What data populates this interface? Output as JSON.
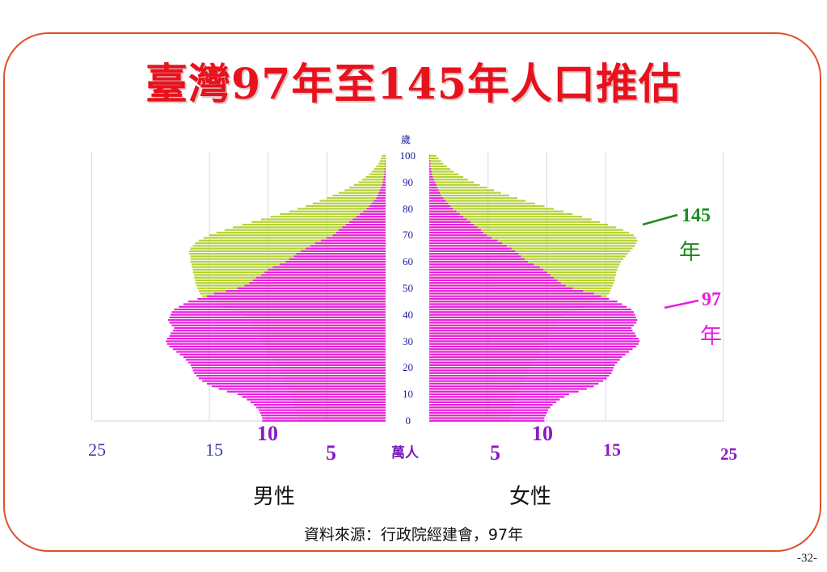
{
  "title": "臺灣97年至145年人口推估",
  "chart_data": {
    "type": "population-pyramid",
    "y_unit": "歲",
    "x_unit": "萬人",
    "y_ticks": [
      "100",
      "90",
      "80",
      "70",
      "60",
      "50",
      "40",
      "30",
      "20",
      "10",
      "0"
    ],
    "x_ticks_left": [
      "25",
      "15",
      "10",
      "5"
    ],
    "x_ticks_right": [
      "5",
      "10",
      "15",
      "25"
    ],
    "xlim": [
      0,
      25
    ],
    "ylim": [
      0,
      100
    ],
    "sides": {
      "left": "男性",
      "right": "女性"
    },
    "series": [
      {
        "name": "145年",
        "label_year": "145",
        "label_unit": "年",
        "color": "#b5d334",
        "male": [
          7.4,
          7.5,
          7.5,
          7.6,
          7.6,
          7.7,
          7.7,
          7.8,
          7.8,
          7.9,
          8.0,
          8.1,
          8.2,
          8.3,
          8.4,
          8.5,
          8.6,
          8.7,
          8.9,
          9.0,
          9.1,
          9.3,
          9.4,
          9.6,
          9.7,
          9.9,
          10.0,
          10.1,
          10.3,
          10.4,
          10.5,
          10.6,
          10.7,
          10.8,
          10.9,
          11.0,
          11.2,
          11.4,
          11.6,
          11.8,
          12.0,
          12.6,
          13.2,
          13.8,
          14.4,
          15.0,
          15.4,
          15.6,
          15.8,
          15.9,
          16.0,
          16.1,
          16.2,
          16.2,
          16.3,
          16.3,
          16.4,
          16.4,
          16.5,
          16.5,
          16.6,
          16.6,
          16.6,
          16.7,
          16.7,
          16.6,
          16.4,
          16.2,
          15.9,
          15.5,
          15.0,
          14.4,
          13.7,
          13.0,
          12.2,
          11.4,
          10.6,
          9.8,
          9.0,
          8.2,
          7.5,
          6.8,
          6.2,
          5.6,
          5.0,
          4.5,
          4.0,
          3.5,
          3.1,
          2.7,
          2.3,
          2.0,
          1.7,
          1.4,
          1.2,
          1.0,
          0.8,
          0.6,
          0.5,
          0.4,
          0.3
        ],
        "female": [
          6.8,
          6.9,
          6.9,
          7.0,
          7.0,
          7.1,
          7.1,
          7.2,
          7.2,
          7.3,
          7.4,
          7.5,
          7.6,
          7.7,
          7.8,
          7.9,
          8.0,
          8.1,
          8.3,
          8.4,
          8.5,
          8.7,
          8.8,
          9.0,
          9.1,
          9.3,
          9.4,
          9.5,
          9.7,
          9.8,
          9.9,
          10.0,
          10.1,
          10.2,
          10.3,
          10.4,
          10.6,
          10.8,
          11.0,
          11.2,
          11.4,
          12.0,
          12.6,
          13.2,
          13.8,
          14.4,
          14.9,
          15.1,
          15.3,
          15.4,
          15.5,
          15.6,
          15.7,
          15.8,
          15.8,
          15.9,
          15.9,
          16.0,
          16.1,
          16.2,
          16.3,
          16.5,
          16.7,
          16.9,
          17.1,
          17.3,
          17.5,
          17.6,
          17.7,
          17.6,
          17.4,
          17.0,
          16.5,
          15.9,
          15.2,
          14.5,
          13.8,
          13.0,
          12.2,
          11.4,
          10.6,
          9.8,
          9.0,
          8.2,
          7.5,
          6.8,
          6.1,
          5.5,
          4.9,
          4.3,
          3.8,
          3.3,
          2.9,
          2.5,
          2.1,
          1.8,
          1.5,
          1.2,
          1.0,
          0.8,
          0.6
        ]
      },
      {
        "name": "97年",
        "label_year": "97",
        "label_unit": "年",
        "color": "#e81ee0",
        "male": [
          10.5,
          10.5,
          10.6,
          10.7,
          10.8,
          11.0,
          11.2,
          11.5,
          11.8,
          12.2,
          12.6,
          13.5,
          14.2,
          14.8,
          15.2,
          15.6,
          15.9,
          16.1,
          16.3,
          16.4,
          16.5,
          16.6,
          16.8,
          17.0,
          17.2,
          17.5,
          17.8,
          18.1,
          18.4,
          18.6,
          18.7,
          18.6,
          18.4,
          18.3,
          18.1,
          18.0,
          18.2,
          18.4,
          18.5,
          18.4,
          18.3,
          18.2,
          18.0,
          17.6,
          17.2,
          16.8,
          16.0,
          15.2,
          14.6,
          13.6,
          12.6,
          12.0,
          11.6,
          11.3,
          11.0,
          10.6,
          10.3,
          10.0,
          9.6,
          9.0,
          8.5,
          8.2,
          7.8,
          7.6,
          7.2,
          6.8,
          6.4,
          6.0,
          5.5,
          5.0,
          4.5,
          4.2,
          4.0,
          3.7,
          3.4,
          3.1,
          2.8,
          2.5,
          2.2,
          1.9,
          1.6,
          1.4,
          1.2,
          1.0,
          0.8,
          0.7,
          0.6,
          0.5,
          0.4,
          0.3,
          0.25,
          0.2,
          0.15,
          0.12,
          0.1,
          0.08,
          0.06,
          0.05,
          0.04,
          0.03,
          0.02
        ],
        "female": [
          9.8,
          9.8,
          9.9,
          10.0,
          10.1,
          10.3,
          10.5,
          10.8,
          11.1,
          11.5,
          11.9,
          12.7,
          13.4,
          14.0,
          14.4,
          14.8,
          15.1,
          15.3,
          15.5,
          15.6,
          15.7,
          15.8,
          16.0,
          16.2,
          16.4,
          16.7,
          17.0,
          17.3,
          17.6,
          17.8,
          17.9,
          17.8,
          17.6,
          17.5,
          17.3,
          17.2,
          17.4,
          17.6,
          17.7,
          17.6,
          17.5,
          17.4,
          17.2,
          16.8,
          16.4,
          16.0,
          15.3,
          14.6,
          14.0,
          13.1,
          12.2,
          11.6,
          11.2,
          10.9,
          10.6,
          10.3,
          10.0,
          9.7,
          9.4,
          8.9,
          8.4,
          8.1,
          7.8,
          7.6,
          7.3,
          7.0,
          6.6,
          6.2,
          5.8,
          5.3,
          4.9,
          4.6,
          4.4,
          4.1,
          3.8,
          3.5,
          3.2,
          2.9,
          2.6,
          2.3,
          2.0,
          1.8,
          1.6,
          1.4,
          1.2,
          1.0,
          0.9,
          0.8,
          0.7,
          0.6,
          0.5,
          0.4,
          0.3,
          0.25,
          0.2,
          0.15,
          0.12,
          0.1,
          0.08,
          0.06,
          0.05
        ]
      }
    ]
  },
  "source_note": "資料來源：行政院經建會，97年",
  "page_number": "-32-"
}
